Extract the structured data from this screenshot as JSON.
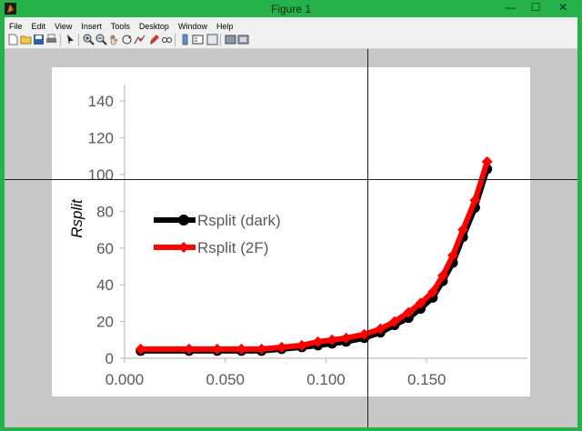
{
  "window": {
    "title": "Figure 1",
    "minimize": "—",
    "maximize": "☐",
    "close": "✕"
  },
  "menu": [
    "File",
    "Edit",
    "View",
    "Insert",
    "Tools",
    "Desktop",
    "Window",
    "Help"
  ],
  "toolbar": [
    "new-figure",
    "open-file",
    "save-figure",
    "print-figure",
    "edit-plot",
    "zoom-in",
    "zoom-out",
    "pan",
    "rotate-3d",
    "data-cursor",
    "brush",
    "link",
    "colorbar",
    "legend",
    "hide-plot-tools",
    "show-plot-tools"
  ],
  "chart_data": {
    "type": "line",
    "ylabel": "Rsplit",
    "xlabel": "",
    "xlim": [
      0.0,
      0.2
    ],
    "ylim": [
      0,
      150
    ],
    "x_ticks": [
      "0.000",
      "0.050",
      "0.100",
      "0.150"
    ],
    "x_tick_values": [
      0.0,
      0.05,
      0.1,
      0.15
    ],
    "y_ticks": [
      "0",
      "20",
      "40",
      "60",
      "80",
      "100",
      "120",
      "140"
    ],
    "y_tick_values": [
      0,
      20,
      40,
      60,
      80,
      100,
      120,
      140
    ],
    "legend_position": "left-middle",
    "series": [
      {
        "name": "Rsplit (dark)",
        "color": "#000000",
        "marker": "circle",
        "x": [
          0.008,
          0.032,
          0.046,
          0.058,
          0.068,
          0.078,
          0.088,
          0.096,
          0.103,
          0.11,
          0.119,
          0.127,
          0.134,
          0.141,
          0.147,
          0.153,
          0.158,
          0.163,
          0.168,
          0.174,
          0.18
        ],
        "y": [
          4,
          4,
          4,
          4,
          4,
          5,
          6,
          7,
          8,
          9,
          11,
          14,
          18,
          22,
          27,
          33,
          42,
          52,
          66,
          82,
          103
        ]
      },
      {
        "name": "Rsplit (2F)",
        "color": "#ff0000",
        "marker": "diamond",
        "x": [
          0.008,
          0.032,
          0.046,
          0.058,
          0.068,
          0.078,
          0.088,
          0.096,
          0.103,
          0.11,
          0.119,
          0.127,
          0.134,
          0.141,
          0.147,
          0.153,
          0.158,
          0.163,
          0.168,
          0.174,
          0.18
        ],
        "y": [
          5,
          5,
          5,
          5,
          5,
          6,
          7,
          9,
          10,
          11,
          13,
          16,
          20,
          25,
          30,
          36,
          45,
          56,
          70,
          86,
          107
        ]
      }
    ]
  }
}
